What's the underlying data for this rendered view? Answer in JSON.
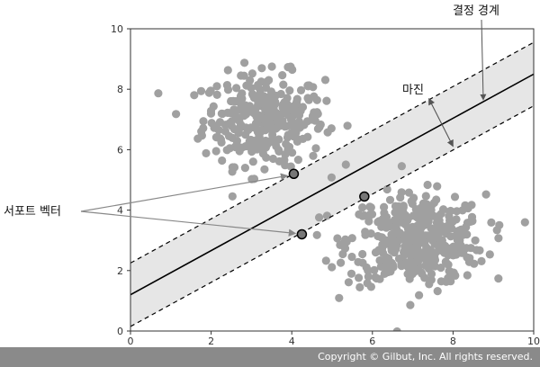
{
  "chart_data": {
    "type": "scatter",
    "xlim": [
      0,
      10
    ],
    "ylim": [
      0,
      10
    ],
    "x_ticks": [
      "0",
      "2",
      "4",
      "6",
      "8",
      "10"
    ],
    "y_ticks": [
      "0",
      "2",
      "4",
      "6",
      "8",
      "10"
    ],
    "grid": false,
    "clusters": [
      {
        "center": [
          3.3,
          7.0
        ],
        "spread": [
          0.75,
          0.75
        ],
        "count": 320
      },
      {
        "center": [
          7.1,
          3.0
        ],
        "spread": [
          0.85,
          0.75
        ],
        "count": 420
      }
    ],
    "decision_boundary": {
      "x": [
        0,
        10
      ],
      "y": [
        1.2,
        8.5
      ]
    },
    "margin_upper": {
      "x": [
        0,
        10
      ],
      "y": [
        2.25,
        9.55
      ]
    },
    "margin_lower": {
      "x": [
        0,
        10
      ],
      "y": [
        0.15,
        7.45
      ]
    },
    "support_vectors": [
      {
        "x": 4.05,
        "y": 5.2
      },
      {
        "x": 4.25,
        "y": 3.2
      },
      {
        "x": 5.8,
        "y": 4.45
      }
    ],
    "colors": {
      "cluster": "#a0a0a0",
      "margin_band": "#e6e6e6",
      "boundary": "#000000",
      "support_vector": "#777777",
      "arrow": "#888888",
      "footer": "#8a8a8a"
    }
  },
  "annotations": {
    "decision_boundary_label": "결정 경계",
    "margin_label": "마진",
    "support_vector_label": "서포트 벡터"
  },
  "footer": {
    "copyright": "Copyright © Gilbut, Inc. All rights reserved."
  }
}
